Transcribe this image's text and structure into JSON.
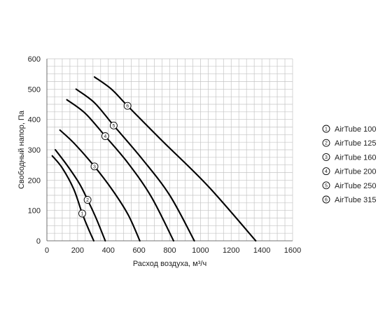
{
  "chart_data": {
    "type": "line",
    "xlabel": "Расход  воздуха, м³/ч",
    "ylabel": "Свободный напор, Па",
    "xlim": [
      0,
      1600
    ],
    "ylim": [
      0,
      600
    ],
    "xticks": [
      "0",
      "200",
      "400",
      "600",
      "800",
      "1000",
      "1200",
      "1400",
      "1600"
    ],
    "yticks": [
      "0",
      "100",
      "200",
      "300",
      "400",
      "500",
      "600"
    ],
    "grid": true,
    "legend_position": "right",
    "series": [
      {
        "name": "AirTube 100",
        "marker": "1",
        "marker_at": {
          "x": 230,
          "y": 90
        },
        "x": [
          35,
          100,
          175,
          230,
          270,
          305
        ],
        "y": [
          280,
          240,
          170,
          90,
          40,
          0
        ]
      },
      {
        "name": "AirTube 125",
        "marker": "2",
        "marker_at": {
          "x": 265,
          "y": 135
        },
        "x": [
          55,
          130,
          210,
          265,
          320,
          380
        ],
        "y": [
          300,
          250,
          190,
          135,
          75,
          0
        ]
      },
      {
        "name": "AirTube 160",
        "marker": "3",
        "marker_at": {
          "x": 310,
          "y": 245
        },
        "x": [
          85,
          180,
          310,
          430,
          530,
          605
        ],
        "y": [
          365,
          320,
          245,
          165,
          85,
          0
        ]
      },
      {
        "name": "AirTube 200",
        "marker": "4",
        "marker_at": {
          "x": 380,
          "y": 345
        },
        "x": [
          130,
          250,
          380,
          530,
          680,
          825
        ],
        "y": [
          465,
          420,
          345,
          255,
          145,
          0
        ]
      },
      {
        "name": "AirTube 250",
        "marker": "5",
        "marker_at": {
          "x": 435,
          "y": 380
        },
        "x": [
          190,
          310,
          435,
          620,
          800,
          960
        ],
        "y": [
          500,
          455,
          380,
          270,
          150,
          0
        ]
      },
      {
        "name": "AirTube 315",
        "marker": "6",
        "marker_at": {
          "x": 525,
          "y": 445
        },
        "x": [
          310,
          420,
          525,
          750,
          1050,
          1360
        ],
        "y": [
          540,
          500,
          445,
          330,
          180,
          0
        ]
      }
    ]
  }
}
